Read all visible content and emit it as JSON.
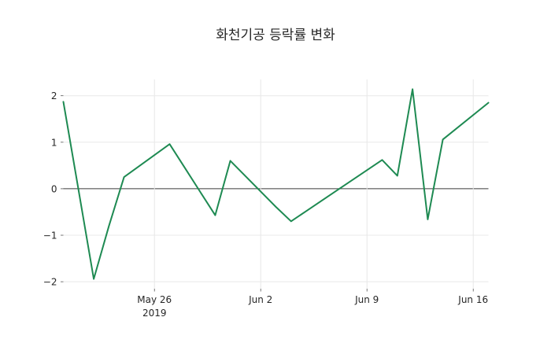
{
  "title": "화천기공 등락률 변화",
  "colors": {
    "line": "#1e8a52",
    "grid": "#e8e8e8",
    "zero_line": "#3a3a3a",
    "tick": "#555555",
    "text": "#262626",
    "background": "#ffffff"
  },
  "chart_data": {
    "type": "line",
    "title": "화천기공 등락률 변화",
    "xlabel": "",
    "ylabel": "",
    "grid": true,
    "legend": "none",
    "x": [
      "2019-05-20",
      "2019-05-21",
      "2019-05-22",
      "2019-05-23",
      "2019-05-24",
      "2019-05-27",
      "2019-05-28",
      "2019-05-29",
      "2019-05-30",
      "2019-05-31",
      "2019-06-03",
      "2019-06-04",
      "2019-06-05",
      "2019-06-07",
      "2019-06-10",
      "2019-06-11",
      "2019-06-12",
      "2019-06-13",
      "2019-06-14",
      "2019-06-17"
    ],
    "series": [
      {
        "name": "등락률",
        "color": "#1e8a52",
        "values": [
          1.87,
          -0.03,
          -1.94,
          -0.8,
          0.25,
          0.96,
          0.45,
          -0.06,
          -0.57,
          0.6,
          -0.39,
          -0.7,
          -0.48,
          -0.04,
          0.62,
          0.28,
          2.14,
          -0.66,
          1.06,
          1.85
        ]
      }
    ],
    "xlim": [
      "2019-05-20",
      "2019-06-17"
    ],
    "ylim": [
      -2.15,
      2.35
    ],
    "xticks": [
      {
        "date": "2019-05-26",
        "label": "May 26",
        "sublabel": "2019"
      },
      {
        "date": "2019-06-02",
        "label": "Jun 2",
        "sublabel": ""
      },
      {
        "date": "2019-06-09",
        "label": "Jun 9",
        "sublabel": ""
      },
      {
        "date": "2019-06-16",
        "label": "Jun 16",
        "sublabel": ""
      }
    ],
    "yticks": [
      {
        "value": 2,
        "label": "2"
      },
      {
        "value": 1,
        "label": "1"
      },
      {
        "value": 0,
        "label": "0"
      },
      {
        "value": -1,
        "label": "−1"
      },
      {
        "value": -2,
        "label": "−2"
      }
    ],
    "zero_line": true
  }
}
